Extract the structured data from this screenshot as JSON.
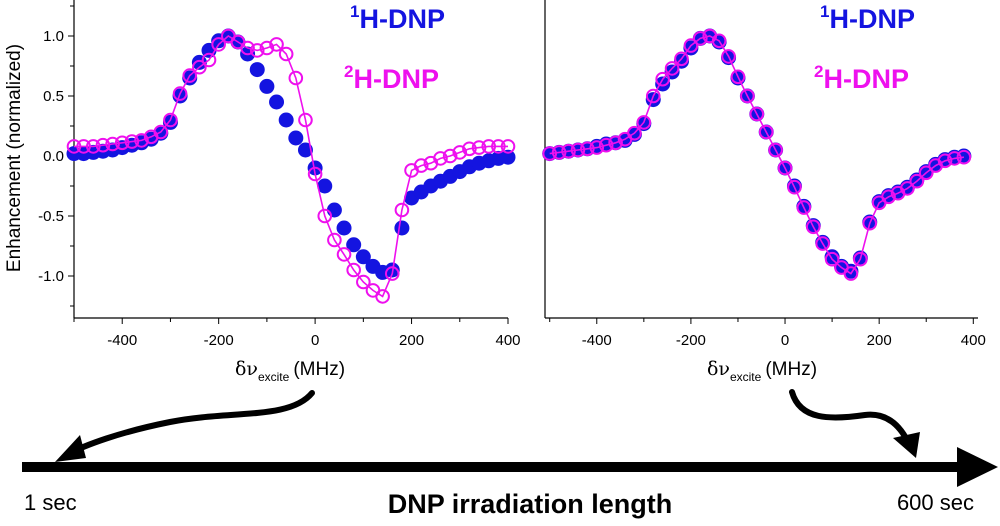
{
  "y_axis_label": "Enhancement (normalized)",
  "timeline": {
    "start_label": "1 sec",
    "end_label": "600 sec",
    "title": "DNP irradiation length"
  },
  "legend_labels": {
    "h_sup": "1",
    "h_text": "H-DNP",
    "d_sup": "2",
    "d_text": "H-DNP"
  },
  "xlabel_parts": {
    "delta_nu": "δν",
    "sub": "excite",
    "unit": "(MHz)"
  },
  "colors": {
    "h_dnp": "#1414e0",
    "d_dnp": "#ee10ee",
    "axis": "#000000"
  },
  "chart_data": [
    {
      "type": "scatter",
      "xlim": [
        -500,
        400
      ],
      "ylim": [
        -1.35,
        1.3
      ],
      "xticks": [
        -400,
        -200,
        0,
        200,
        400
      ],
      "yticks": [
        -1.0,
        -0.5,
        0.0,
        0.5,
        1.0
      ],
      "ytick_labels": [
        "-1.0",
        "-0.5",
        "0.0",
        "0.5",
        "1.0"
      ],
      "xlabel": "δν excite (MHz)",
      "ylabel": "Enhancement (normalized)",
      "series": [
        {
          "name": "1H-DNP",
          "marker": "filled-circle",
          "line": false,
          "x": [
            -500,
            -480,
            -460,
            -440,
            -420,
            -400,
            -380,
            -360,
            -340,
            -320,
            -300,
            -280,
            -260,
            -240,
            -220,
            -200,
            -180,
            -160,
            -140,
            -120,
            -100,
            -80,
            -60,
            -40,
            -20,
            0,
            20,
            40,
            60,
            80,
            100,
            120,
            140,
            160,
            180,
            200,
            220,
            240,
            260,
            280,
            300,
            320,
            340,
            360,
            380,
            400
          ],
          "y": [
            0.02,
            0.02,
            0.03,
            0.04,
            0.05,
            0.07,
            0.09,
            0.11,
            0.14,
            0.19,
            0.28,
            0.5,
            0.65,
            0.78,
            0.88,
            0.96,
            1.0,
            0.95,
            0.85,
            0.72,
            0.58,
            0.45,
            0.3,
            0.15,
            0.05,
            -0.1,
            -0.25,
            -0.45,
            -0.6,
            -0.74,
            -0.84,
            -0.92,
            -0.97,
            -0.95,
            -0.6,
            -0.35,
            -0.3,
            -0.25,
            -0.21,
            -0.17,
            -0.13,
            -0.09,
            -0.06,
            -0.04,
            -0.02,
            -0.01
          ]
        },
        {
          "name": "2H-DNP",
          "marker": "open-circle",
          "line": true,
          "x": [
            -500,
            -480,
            -460,
            -440,
            -420,
            -400,
            -380,
            -360,
            -340,
            -320,
            -300,
            -280,
            -260,
            -240,
            -220,
            -200,
            -180,
            -160,
            -140,
            -120,
            -100,
            -80,
            -60,
            -40,
            -20,
            0,
            20,
            40,
            60,
            80,
            100,
            120,
            140,
            160,
            180,
            200,
            220,
            240,
            260,
            280,
            300,
            320,
            340,
            360,
            380,
            400
          ],
          "y": [
            0.08,
            0.08,
            0.08,
            0.09,
            0.1,
            0.11,
            0.12,
            0.13,
            0.16,
            0.2,
            0.3,
            0.52,
            0.67,
            0.74,
            0.8,
            0.93,
            1.0,
            0.95,
            0.9,
            0.88,
            0.9,
            0.93,
            0.85,
            0.65,
            0.3,
            -0.15,
            -0.5,
            -0.7,
            -0.82,
            -0.95,
            -1.05,
            -1.12,
            -1.17,
            -0.98,
            -0.45,
            -0.12,
            -0.08,
            -0.06,
            -0.02,
            0.0,
            0.03,
            0.06,
            0.07,
            0.08,
            0.08,
            0.08
          ]
        }
      ]
    },
    {
      "type": "scatter",
      "xlim": [
        -510,
        410
      ],
      "ylim": [
        -1.35,
        1.3
      ],
      "xticks": [
        -400,
        -200,
        0,
        200,
        400
      ],
      "yticks": [],
      "xlabel": "δν excite (MHz)",
      "series": [
        {
          "name": "1H-DNP",
          "marker": "filled-circle",
          "line": false,
          "x": [
            -500,
            -480,
            -460,
            -440,
            -420,
            -400,
            -380,
            -360,
            -340,
            -320,
            -300,
            -280,
            -260,
            -240,
            -220,
            -200,
            -180,
            -160,
            -140,
            -120,
            -100,
            -80,
            -60,
            -40,
            -20,
            0,
            20,
            40,
            60,
            80,
            100,
            120,
            140,
            160,
            180,
            200,
            220,
            240,
            260,
            280,
            300,
            320,
            340,
            360,
            380
          ],
          "y": [
            0.02,
            0.03,
            0.04,
            0.05,
            0.06,
            0.08,
            0.1,
            0.11,
            0.13,
            0.18,
            0.27,
            0.47,
            0.6,
            0.7,
            0.79,
            0.9,
            0.98,
            1.0,
            0.95,
            0.82,
            0.65,
            0.5,
            0.35,
            0.2,
            0.05,
            -0.1,
            -0.25,
            -0.42,
            -0.58,
            -0.72,
            -0.84,
            -0.92,
            -0.96,
            -0.85,
            -0.55,
            -0.38,
            -0.33,
            -0.3,
            -0.26,
            -0.2,
            -0.13,
            -0.07,
            -0.03,
            -0.01,
            0.0
          ]
        },
        {
          "name": "2H-DNP",
          "marker": "open-circle",
          "line": true,
          "x": [
            -500,
            -480,
            -460,
            -440,
            -420,
            -400,
            -380,
            -360,
            -340,
            -320,
            -300,
            -280,
            -260,
            -240,
            -220,
            -200,
            -180,
            -160,
            -140,
            -120,
            -100,
            -80,
            -60,
            -40,
            -20,
            0,
            20,
            40,
            60,
            80,
            100,
            120,
            140,
            160,
            180,
            200,
            220,
            240,
            260,
            280,
            300,
            320,
            340,
            360,
            380
          ],
          "y": [
            0.02,
            0.03,
            0.04,
            0.05,
            0.06,
            0.07,
            0.09,
            0.11,
            0.14,
            0.19,
            0.28,
            0.5,
            0.64,
            0.73,
            0.81,
            0.92,
            0.98,
            1.0,
            0.96,
            0.83,
            0.66,
            0.5,
            0.35,
            0.2,
            0.05,
            -0.1,
            -0.26,
            -0.43,
            -0.59,
            -0.73,
            -0.86,
            -0.93,
            -0.98,
            -0.86,
            -0.56,
            -0.39,
            -0.34,
            -0.31,
            -0.27,
            -0.21,
            -0.14,
            -0.08,
            -0.04,
            -0.02,
            -0.01
          ]
        }
      ]
    }
  ]
}
